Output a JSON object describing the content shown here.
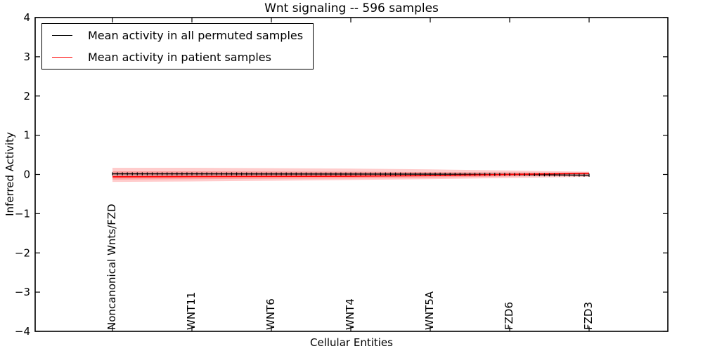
{
  "title": "Wnt signaling -- 596 samples",
  "axes": {
    "xlabel": "Cellular Entities",
    "ylabel": "Inferred Activity"
  },
  "legend": {
    "position": "upper left",
    "items": [
      {
        "label": "Mean activity in all permuted samples",
        "color": "#000000"
      },
      {
        "label": "Mean activity in patient samples",
        "color": "#ff0000"
      }
    ]
  },
  "chart_data": {
    "type": "line",
    "title": "Wnt signaling -- 596 samples",
    "xlabel": "Cellular Entities",
    "ylabel": "Inferred Activity",
    "ylim": [
      -4,
      4
    ],
    "yticks": [
      4,
      3,
      2,
      1,
      0,
      -1,
      -2,
      -3,
      -4
    ],
    "yticklabels": [
      "4",
      "3",
      "2",
      "1",
      "0",
      "−1",
      "−2",
      "−3",
      "−4"
    ],
    "categories": [
      "Noncanonical Wnts/FZD",
      "WNT11",
      "WNT6",
      "WNT4",
      "WNT5A",
      "FZD6",
      "FZD3"
    ],
    "series": [
      {
        "name": "Mean activity in all permuted samples",
        "color": "#000000",
        "marker": "|",
        "values": [
          0.015,
          0.015,
          0.012,
          0.01,
          0.008,
          0.0,
          -0.02
        ]
      },
      {
        "name": "Mean activity in patient samples",
        "color": "#ff0000",
        "marker": "none",
        "values": [
          -0.06,
          -0.055,
          -0.05,
          -0.045,
          -0.03,
          0.0,
          0.03
        ]
      }
    ],
    "bands": [
      {
        "name": "patient-spread-outer",
        "color": "rgba(255,0,0,0.20)",
        "top": [
          0.17,
          0.17,
          0.16,
          0.15,
          0.13,
          0.1,
          0.07
        ],
        "bottom": [
          -0.19,
          -0.18,
          -0.16,
          -0.14,
          -0.12,
          -0.09,
          -0.06
        ]
      },
      {
        "name": "patient-spread-inner",
        "color": "rgba(255,0,0,0.22)",
        "top": [
          0.08,
          0.08,
          0.075,
          0.07,
          0.06,
          0.05,
          0.04
        ],
        "bottom": [
          -0.13,
          -0.12,
          -0.11,
          -0.1,
          -0.08,
          -0.05,
          -0.03
        ]
      },
      {
        "name": "permuted-spread",
        "color": "rgba(110,110,110,0.25)",
        "top": [
          0.05,
          0.05,
          0.05,
          0.05,
          0.045,
          0.04,
          0.02
        ],
        "bottom": [
          -0.03,
          -0.03,
          -0.03,
          -0.025,
          -0.025,
          -0.03,
          -0.05
        ]
      }
    ],
    "marker_points": 97,
    "legend_position": "upper left",
    "grid": false
  }
}
